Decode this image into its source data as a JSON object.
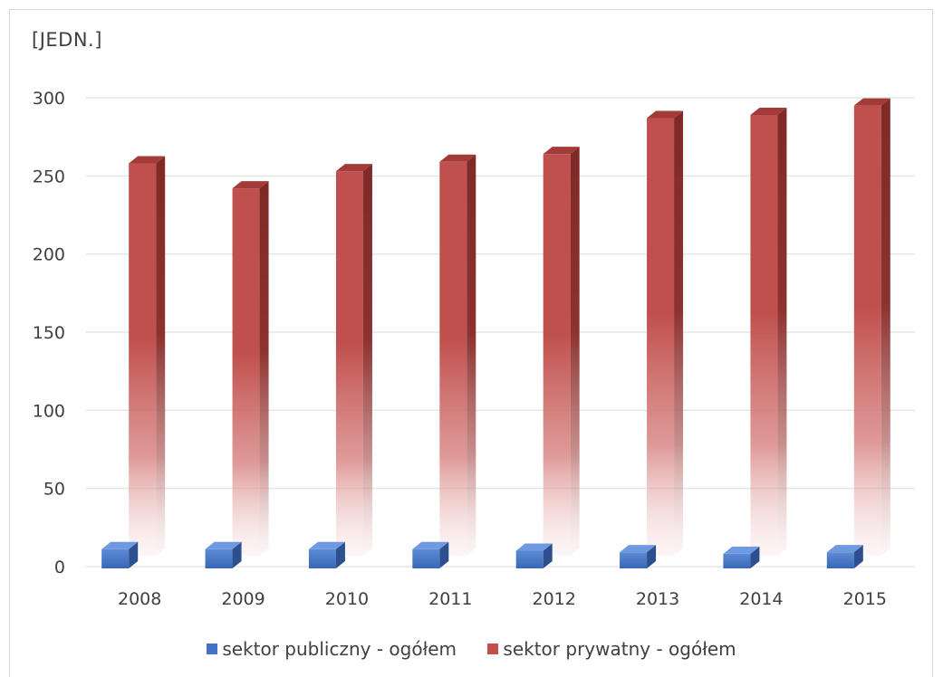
{
  "chart_data": {
    "type": "bar",
    "unit_label": "[JEDN.]",
    "categories": [
      "2008",
      "2009",
      "2010",
      "2011",
      "2012",
      "2013",
      "2014",
      "2015"
    ],
    "series": [
      {
        "name": "sektor publiczny - ogółem",
        "color": "#4472C4",
        "values": [
          10,
          10,
          10,
          10,
          9,
          8,
          7,
          8
        ]
      },
      {
        "name": "sektor prywatny - ogółem",
        "color": "#C0504D",
        "values": [
          258,
          242,
          253,
          259,
          264,
          287,
          289,
          295
        ]
      }
    ],
    "yticks": [
      "0",
      "50",
      "100",
      "150",
      "200",
      "250",
      "300"
    ],
    "ylim": [
      0,
      300
    ],
    "grid": true,
    "legend_position": "bottom"
  }
}
